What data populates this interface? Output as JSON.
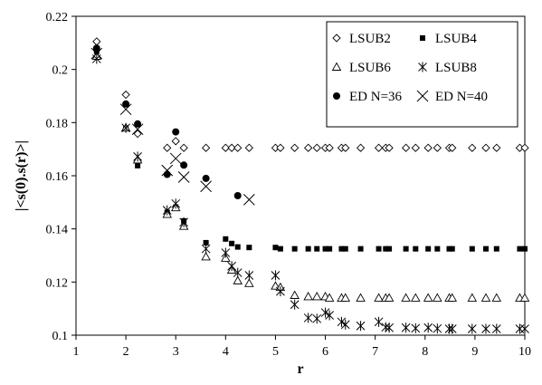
{
  "chart_data": {
    "type": "scatter",
    "title": "",
    "xlabel": "r",
    "ylabel": "|<s(0).s(r)>|",
    "xlim": [
      1,
      10
    ],
    "ylim": [
      0.1,
      0.22
    ],
    "xticks": [
      1,
      2,
      3,
      4,
      5,
      6,
      7,
      8,
      9,
      10
    ],
    "yticks": [
      0.1,
      0.12,
      0.14,
      0.16,
      0.18,
      0.2,
      0.22
    ],
    "ytick_labels": [
      "0.1",
      "0.12",
      "0.14",
      "0.16",
      "0.18",
      "0.2",
      "0.22"
    ],
    "grid": false,
    "legend_position": "top-right",
    "series": [
      {
        "name": "LSUB2",
        "marker": "diamond-open",
        "points": [
          [
            1.414,
            0.2105
          ],
          [
            2.0,
            0.1905
          ],
          [
            2.236,
            0.1758
          ],
          [
            2.828,
            0.1705
          ],
          [
            3.0,
            0.173
          ],
          [
            3.162,
            0.1705
          ],
          [
            3.606,
            0.1705
          ],
          [
            4.0,
            0.1705
          ],
          [
            4.123,
            0.1705
          ],
          [
            4.243,
            0.1705
          ],
          [
            4.472,
            0.1705
          ],
          [
            5.0,
            0.1705
          ],
          [
            5.099,
            0.1705
          ],
          [
            5.385,
            0.1705
          ],
          [
            5.657,
            0.1705
          ],
          [
            5.831,
            0.1705
          ],
          [
            6.0,
            0.1705
          ],
          [
            6.083,
            0.1705
          ],
          [
            6.325,
            0.1705
          ],
          [
            6.403,
            0.1705
          ],
          [
            6.708,
            0.1705
          ],
          [
            7.071,
            0.1705
          ],
          [
            7.211,
            0.1705
          ],
          [
            7.28,
            0.1705
          ],
          [
            7.616,
            0.1705
          ],
          [
            7.81,
            0.1705
          ],
          [
            8.062,
            0.1705
          ],
          [
            8.246,
            0.1705
          ],
          [
            8.485,
            0.1705
          ],
          [
            8.544,
            0.1705
          ],
          [
            8.944,
            0.1705
          ],
          [
            9.22,
            0.1705
          ],
          [
            9.434,
            0.1705
          ],
          [
            9.899,
            0.1705
          ],
          [
            10.0,
            0.1705
          ]
        ]
      },
      {
        "name": "LSUB4",
        "marker": "square-filled",
        "points": [
          [
            1.414,
            0.2068
          ],
          [
            2.0,
            0.1778
          ],
          [
            2.236,
            0.1638
          ],
          [
            2.828,
            0.1462
          ],
          [
            3.0,
            0.1482
          ],
          [
            3.162,
            0.143
          ],
          [
            3.606,
            0.1348
          ],
          [
            4.0,
            0.1362
          ],
          [
            4.123,
            0.1345
          ],
          [
            4.243,
            0.1332
          ],
          [
            4.472,
            0.133
          ],
          [
            5.0,
            0.133
          ],
          [
            5.099,
            0.1325
          ],
          [
            5.385,
            0.1325
          ],
          [
            5.657,
            0.1325
          ],
          [
            5.831,
            0.1325
          ],
          [
            6.0,
            0.1325
          ],
          [
            6.083,
            0.1325
          ],
          [
            6.325,
            0.1325
          ],
          [
            6.403,
            0.1325
          ],
          [
            6.708,
            0.1325
          ],
          [
            7.071,
            0.1325
          ],
          [
            7.211,
            0.1325
          ],
          [
            7.28,
            0.1325
          ],
          [
            7.616,
            0.1325
          ],
          [
            7.81,
            0.1325
          ],
          [
            8.062,
            0.1325
          ],
          [
            8.246,
            0.1325
          ],
          [
            8.485,
            0.1325
          ],
          [
            8.544,
            0.1325
          ],
          [
            8.944,
            0.1325
          ],
          [
            9.22,
            0.1325
          ],
          [
            9.434,
            0.1325
          ],
          [
            9.899,
            0.1325
          ],
          [
            10.0,
            0.1325
          ]
        ]
      },
      {
        "name": "LSUB6",
        "marker": "triangle-open",
        "points": [
          [
            1.414,
            0.205
          ],
          [
            2.0,
            0.178
          ],
          [
            2.236,
            0.166
          ],
          [
            2.828,
            0.1455
          ],
          [
            3.0,
            0.148
          ],
          [
            3.162,
            0.141
          ],
          [
            3.606,
            0.1295
          ],
          [
            4.0,
            0.129
          ],
          [
            4.123,
            0.1245
          ],
          [
            4.243,
            0.1205
          ],
          [
            4.472,
            0.1195
          ],
          [
            5.0,
            0.1185
          ],
          [
            5.099,
            0.118
          ],
          [
            5.385,
            0.115
          ],
          [
            5.657,
            0.1145
          ],
          [
            5.831,
            0.1145
          ],
          [
            6.0,
            0.1145
          ],
          [
            6.083,
            0.114
          ],
          [
            6.325,
            0.114
          ],
          [
            6.403,
            0.114
          ],
          [
            6.708,
            0.114
          ],
          [
            7.071,
            0.114
          ],
          [
            7.211,
            0.114
          ],
          [
            7.28,
            0.114
          ],
          [
            7.616,
            0.114
          ],
          [
            7.81,
            0.114
          ],
          [
            8.062,
            0.114
          ],
          [
            8.246,
            0.114
          ],
          [
            8.485,
            0.114
          ],
          [
            8.544,
            0.114
          ],
          [
            8.944,
            0.114
          ],
          [
            9.22,
            0.114
          ],
          [
            9.434,
            0.114
          ],
          [
            9.899,
            0.114
          ],
          [
            10.0,
            0.114
          ]
        ]
      },
      {
        "name": "LSUB8",
        "marker": "asterisk",
        "points": [
          [
            1.414,
            0.204
          ],
          [
            2.0,
            0.178
          ],
          [
            2.236,
            0.1672
          ],
          [
            2.828,
            0.147
          ],
          [
            3.0,
            0.1495
          ],
          [
            3.162,
            0.1425
          ],
          [
            3.606,
            0.1325
          ],
          [
            4.0,
            0.131
          ],
          [
            4.123,
            0.126
          ],
          [
            4.243,
            0.1235
          ],
          [
            4.472,
            0.1225
          ],
          [
            5.0,
            0.1225
          ],
          [
            5.099,
            0.1165
          ],
          [
            5.385,
            0.1115
          ],
          [
            5.657,
            0.1065
          ],
          [
            5.831,
            0.1062
          ],
          [
            6.0,
            0.1085
          ],
          [
            6.083,
            0.1075
          ],
          [
            6.325,
            0.105
          ],
          [
            6.403,
            0.104
          ],
          [
            6.708,
            0.1035
          ],
          [
            7.071,
            0.105
          ],
          [
            7.211,
            0.103
          ],
          [
            7.28,
            0.1028
          ],
          [
            7.616,
            0.1028
          ],
          [
            7.81,
            0.1026
          ],
          [
            8.062,
            0.1028
          ],
          [
            8.246,
            0.1025
          ],
          [
            8.485,
            0.1024
          ],
          [
            8.544,
            0.1024
          ],
          [
            8.944,
            0.1024
          ],
          [
            9.22,
            0.1024
          ],
          [
            9.434,
            0.1024
          ],
          [
            9.899,
            0.1024
          ],
          [
            10.0,
            0.1024
          ]
        ]
      },
      {
        "name": "ED N=36",
        "marker": "circle-filled",
        "points": [
          [
            1.414,
            0.208
          ],
          [
            2.0,
            0.187
          ],
          [
            2.236,
            0.1795
          ],
          [
            2.828,
            0.1605
          ],
          [
            3.0,
            0.1765
          ],
          [
            3.162,
            0.164
          ],
          [
            3.606,
            0.159
          ],
          [
            4.243,
            0.1525
          ]
        ]
      },
      {
        "name": "ED N=40",
        "marker": "cross",
        "points": [
          [
            1.414,
            0.206
          ],
          [
            2.0,
            0.185
          ],
          [
            2.236,
            0.1775
          ],
          [
            2.828,
            0.162
          ],
          [
            3.0,
            0.1665
          ],
          [
            3.162,
            0.1595
          ],
          [
            3.606,
            0.156
          ],
          [
            4.472,
            0.151
          ]
        ]
      }
    ]
  }
}
